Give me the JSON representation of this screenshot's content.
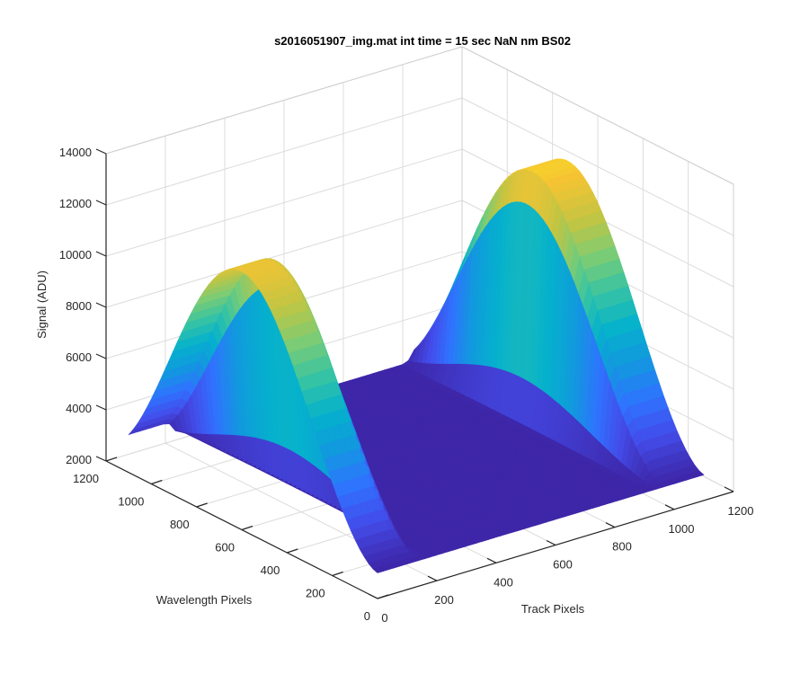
{
  "chart_data": {
    "type": "surface",
    "title": "s2016051907_img.mat int time = 15 sec  NaN nm BS02",
    "xlabel": "Track Pixels",
    "ylabel": "Wavelength Pixels",
    "zlabel": "Signal (ADU)",
    "xlim": [
      0,
      1200
    ],
    "ylim": [
      0,
      1200
    ],
    "zlim": [
      2000,
      14000
    ],
    "x_ticks": [
      "0",
      "200",
      "400",
      "600",
      "800",
      "1000",
      "1200"
    ],
    "y_ticks": [
      "0",
      "200",
      "400",
      "600",
      "800",
      "1000",
      "1200"
    ],
    "z_ticks": [
      "2000",
      "4000",
      "6000",
      "8000",
      "10000",
      "12000",
      "14000"
    ],
    "grid": true,
    "colormap": "parula",
    "baseline_signal": 3000,
    "series": [
      {
        "track_center": 0,
        "peak_signal": 12500,
        "peak_wavelength_pixel": 900,
        "wavelength_range": [
          0,
          1100
        ]
      },
      {
        "track_center": 1100,
        "peak_signal": 13000,
        "peak_wavelength_pixel": 900,
        "wavelength_range": [
          0,
          1100
        ]
      }
    ],
    "data_extent": {
      "track": [
        0,
        1100
      ],
      "wavelength": [
        0,
        1100
      ]
    }
  }
}
